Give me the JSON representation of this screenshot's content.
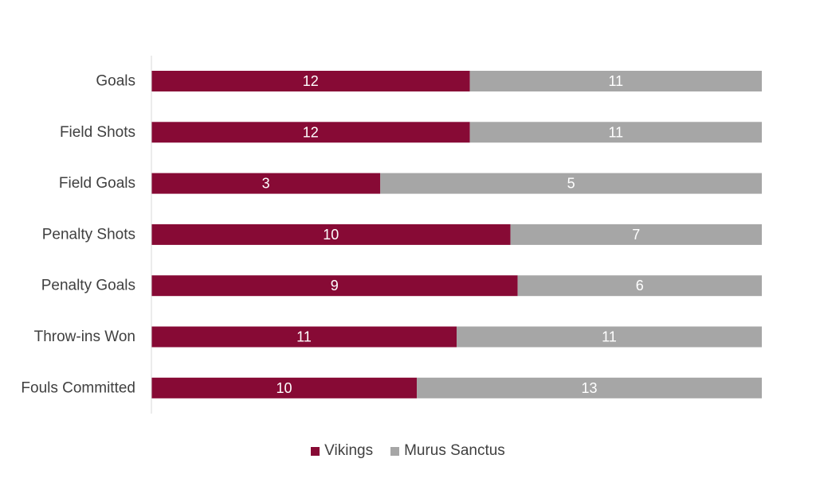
{
  "chart_data": {
    "type": "bar",
    "orientation": "horizontal",
    "stacked": "percent",
    "categories": [
      "Goals",
      "Field Shots",
      "Field Goals",
      "Penalty Shots",
      "Penalty Goals",
      "Throw-ins Won",
      "Fouls Committed"
    ],
    "series": [
      {
        "name": "Vikings",
        "values": [
          12,
          12,
          3,
          10,
          9,
          11,
          10
        ],
        "color": "#870a35"
      },
      {
        "name": "Murus Sanctus",
        "values": [
          11,
          11,
          5,
          7,
          6,
          11,
          13
        ],
        "color": "#a6a6a6"
      }
    ],
    "title": "",
    "xlabel": "",
    "ylabel": "",
    "legend_position": "bottom",
    "grid": false
  }
}
